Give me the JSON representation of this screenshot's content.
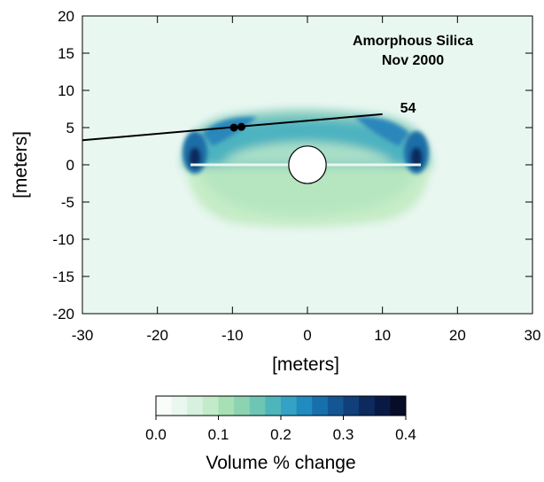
{
  "chart_data": {
    "type": "heatmap",
    "title": "",
    "annotation": {
      "line1": "Amorphous Silica",
      "line2": "Nov 2000"
    },
    "xlabel": "[meters]",
    "ylabel": "[meters]",
    "xlim": [
      -30,
      30
    ],
    "ylim": [
      -20,
      20
    ],
    "xticks": [
      -30,
      -20,
      -10,
      0,
      10,
      20,
      30
    ],
    "xtick_labels": [
      "-30",
      "-20",
      "-10",
      "0",
      "10",
      "20",
      "30"
    ],
    "yticks": [
      20,
      15,
      10,
      5,
      0,
      -5,
      -10,
      -15,
      -20
    ],
    "ytick_labels": [
      "20",
      "15",
      "10",
      "5",
      "0",
      "-5",
      "-10",
      "-15",
      "-20"
    ],
    "background_value_color": "#e9f7f1",
    "borehole": {
      "x": [
        -30,
        10
      ],
      "y": [
        3.3,
        6.8
      ],
      "label": "54"
    },
    "sample_points": [
      {
        "x": -9.8,
        "y": 5.0
      },
      {
        "x": -8.8,
        "y": 5.1
      }
    ],
    "cavity": {
      "center": [
        0,
        0
      ],
      "radius": 2.5
    },
    "field_summary": [
      {
        "region": "lower lobe",
        "x_range": [
          -14,
          14
        ],
        "y_range": [
          -8,
          0
        ],
        "value": 0.08
      },
      {
        "region": "upper arc",
        "x_range": [
          -13,
          13
        ],
        "y_range": [
          0,
          7
        ],
        "value": 0.2
      },
      {
        "region": "left edge core",
        "x": -14.5,
        "y": 0.8,
        "value": 0.35
      },
      {
        "region": "right edge core",
        "x": 14.5,
        "y": 0.8,
        "value": 0.35
      }
    ],
    "colorbar": {
      "label": "Volume % change",
      "ticks": [
        "0.0",
        "0.1",
        "0.2",
        "0.3",
        "0.4"
      ],
      "range": [
        0,
        0.4
      ],
      "colors": [
        "#f8fdf9",
        "#e9f7ef",
        "#d6f1dd",
        "#c2ebc9",
        "#a6e0b4",
        "#8cd3b1",
        "#6dc6b3",
        "#4eb5bb",
        "#34a2c4",
        "#1f8bbf",
        "#1770ac",
        "#145694",
        "#113f7a",
        "#0c2a5e",
        "#081a44",
        "#050d29"
      ]
    }
  }
}
